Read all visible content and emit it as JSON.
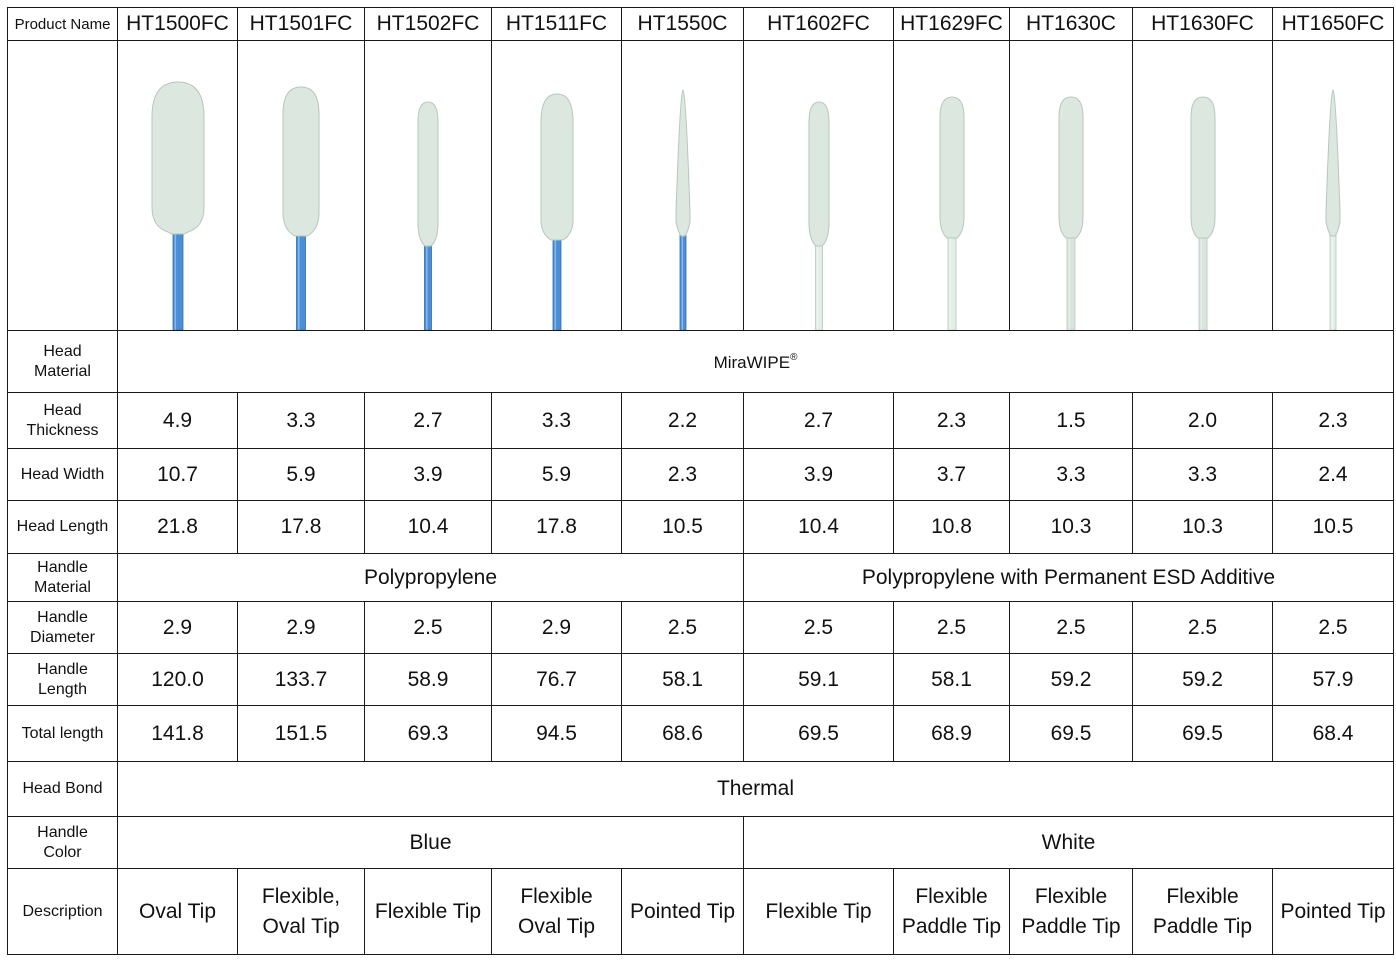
{
  "header": {
    "label": "Product Name",
    "products": [
      "HT1500FC",
      "HT1501FC",
      "HT1502FC",
      "HT1511FC",
      "HT1550C",
      "HT1602FC",
      "HT1629FC",
      "HT1630C",
      "HT1630FC",
      "HT1650FC"
    ]
  },
  "swabs": [
    {
      "head": "oval-wide",
      "handle_color": "#4a8fd6"
    },
    {
      "head": "oval",
      "handle_color": "#4a8fd6"
    },
    {
      "head": "flexible-narrow",
      "handle_color": "#4a8fd6"
    },
    {
      "head": "oval-flexible",
      "handle_color": "#4a8fd6"
    },
    {
      "head": "pointed",
      "handle_color": "#4a8fd6"
    },
    {
      "head": "flexible-narrow",
      "handle_color": "#e2efe6"
    },
    {
      "head": "paddle",
      "handle_color": "#e2efe6"
    },
    {
      "head": "paddle",
      "handle_color": "#d8e4dc"
    },
    {
      "head": "paddle",
      "handle_color": "#d8e4dc"
    },
    {
      "head": "pointed",
      "handle_color": "#e2efe6"
    }
  ],
  "rows": {
    "head_material": {
      "label_1": "Head",
      "label_2": "Material",
      "value": "MiraWIPE",
      "mark": "®"
    },
    "head_thickness": {
      "label_1": "Head",
      "label_2": "Thickness",
      "values": [
        "4.9",
        "3.3",
        "2.7",
        "3.3",
        "2.2",
        "2.7",
        "2.3",
        "1.5",
        "2.0",
        "2.3"
      ]
    },
    "head_width": {
      "label": "Head Width",
      "values": [
        "10.7",
        "5.9",
        "3.9",
        "5.9",
        "2.3",
        "3.9",
        "3.7",
        "3.3",
        "3.3",
        "2.4"
      ]
    },
    "head_length": {
      "label": "Head Length",
      "values": [
        "21.8",
        "17.8",
        "10.4",
        "17.8",
        "10.5",
        "10.4",
        "10.8",
        "10.3",
        "10.3",
        "10.5"
      ]
    },
    "handle_material": {
      "label_1": "Handle",
      "label_2": "Material",
      "left": "Polypropylene",
      "right": "Polypropylene with  Permanent ESD Additive"
    },
    "handle_diameter": {
      "label_1": "Handle",
      "label_2": "Diameter",
      "values": [
        "2.9",
        "2.9",
        "2.5",
        "2.9",
        "2.5",
        "2.5",
        "2.5",
        "2.5",
        "2.5",
        "2.5"
      ]
    },
    "handle_length": {
      "label_1": "Handle",
      "label_2": "Length",
      "values": [
        "120.0",
        "133.7",
        "58.9",
        "76.7",
        "58.1",
        "59.1",
        "58.1",
        "59.2",
        "59.2",
        "57.9"
      ]
    },
    "total_length": {
      "label": "Total length",
      "values": [
        "141.8",
        "151.5",
        "69.3",
        "94.5",
        "68.6",
        "69.5",
        "68.9",
        "69.5",
        "69.5",
        "68.4"
      ]
    },
    "head_bond": {
      "label": "Head Bond",
      "value": "Thermal"
    },
    "handle_color": {
      "label_1": "Handle",
      "label_2": "Color",
      "left": "Blue",
      "right": "White"
    },
    "description": {
      "label": "Description",
      "values": [
        [
          "Oval Tip"
        ],
        [
          "Flexible,",
          "Oval Tip"
        ],
        [
          "Flexible Tip"
        ],
        [
          "Flexible",
          "Oval Tip"
        ],
        [
          "Pointed Tip"
        ],
        [
          "Flexible Tip"
        ],
        [
          "Flexible",
          "Paddle Tip"
        ],
        [
          "Flexible",
          "Paddle Tip"
        ],
        [
          "Flexible",
          "Paddle Tip"
        ],
        [
          "Pointed Tip"
        ]
      ]
    }
  }
}
